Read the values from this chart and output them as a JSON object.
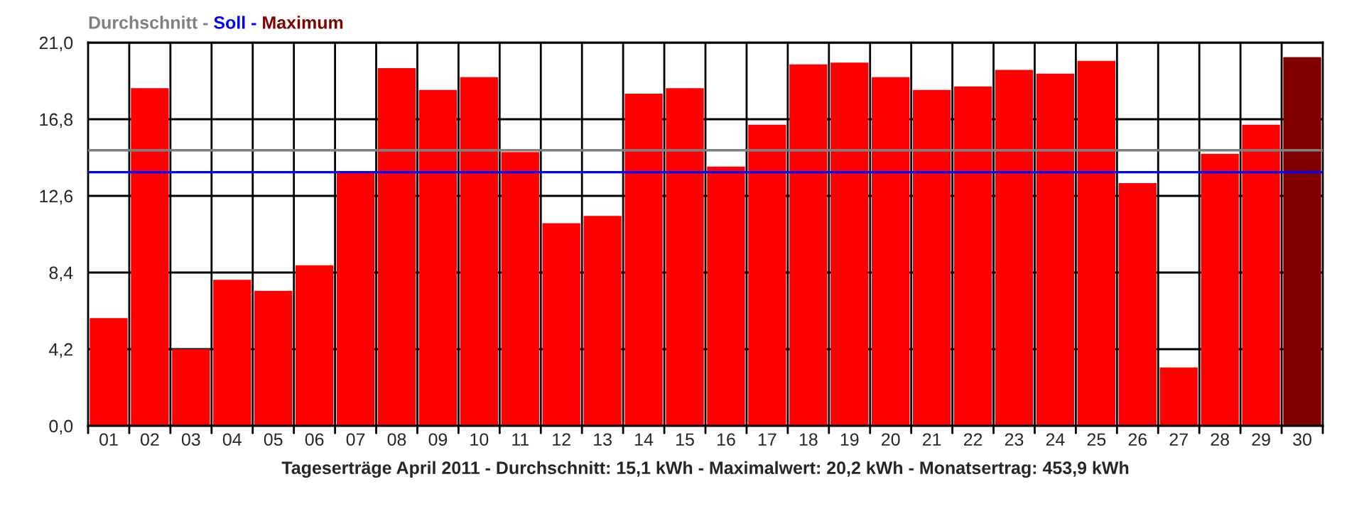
{
  "chart_data": {
    "type": "bar",
    "xlabel": "Tageserträge April 2011 - Durchschnitt: 15,1 kWh - Maximalwert: 20,2 kWh - Monatsertrag: 453,9 kWh",
    "categories": [
      "01",
      "02",
      "03",
      "04",
      "05",
      "06",
      "07",
      "08",
      "09",
      "10",
      "11",
      "12",
      "13",
      "14",
      "15",
      "16",
      "17",
      "18",
      "19",
      "20",
      "21",
      "22",
      "23",
      "24",
      "25",
      "26",
      "27",
      "28",
      "29",
      "30"
    ],
    "values": [
      5.9,
      18.5,
      4.2,
      8.0,
      7.4,
      8.8,
      13.9,
      19.6,
      18.4,
      19.1,
      15.0,
      11.1,
      11.5,
      18.2,
      18.5,
      14.2,
      16.5,
      19.8,
      19.9,
      19.1,
      18.4,
      18.6,
      19.5,
      19.3,
      20.0,
      13.3,
      3.2,
      14.9,
      16.5,
      20.2
    ],
    "colors": [
      "#ff0000",
      "#ff0000",
      "#ff0000",
      "#ff0000",
      "#ff0000",
      "#ff0000",
      "#ff0000",
      "#ff0000",
      "#ff0000",
      "#ff0000",
      "#ff0000",
      "#ff0000",
      "#ff0000",
      "#ff0000",
      "#ff0000",
      "#ff0000",
      "#ff0000",
      "#ff0000",
      "#ff0000",
      "#ff0000",
      "#ff0000",
      "#ff0000",
      "#ff0000",
      "#ff0000",
      "#ff0000",
      "#ff0000",
      "#ff0000",
      "#ff0000",
      "#ff0000",
      "#800000"
    ],
    "ylim": [
      0,
      21
    ],
    "yticks": [
      {
        "value": 0,
        "label": "0,0"
      },
      {
        "value": 4.2,
        "label": "4,2"
      },
      {
        "value": 8.4,
        "label": "8,4"
      },
      {
        "value": 12.6,
        "label": "12,6"
      },
      {
        "value": 16.8,
        "label": "16,8"
      },
      {
        "value": 21,
        "label": "21,0"
      }
    ],
    "grid": true,
    "ref_lines": [
      {
        "axis": "y",
        "value": 15.1,
        "label": "Durchschnitt -",
        "color": "#808080"
      },
      {
        "axis": "y",
        "value": 13.9,
        "label": "Soll -",
        "color": "#0000ff"
      }
    ],
    "annotations": [
      "Maximum"
    ]
  }
}
